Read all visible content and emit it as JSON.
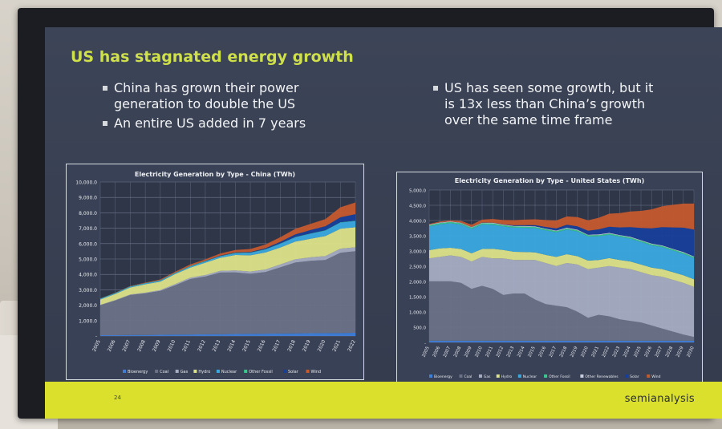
{
  "slide": {
    "title": "US has stagnated energy growth",
    "left_bullets": [
      "China has grown their power generation to double the US",
      "An entire US added in 7 years"
    ],
    "right_bullets": [
      "US has seen some growth, but it is 13x less than China’s growth over the same time frame"
    ],
    "page_number": "24",
    "brand": "semianalysis"
  },
  "colors": {
    "bioenergy": "#3f7fd8",
    "coal": "#6b7287",
    "gas": "#a7aec4",
    "hydro": "#dde38a",
    "nuclear": "#3aa9e0",
    "other_fossil": "#39c98f",
    "other_renewables": "#c8cde0",
    "solar": "#173f9a",
    "wind": "#c55a2f"
  },
  "chart_data": [
    {
      "type": "area",
      "stacked": true,
      "title": "Electricity Generation by Type - China (TWh)",
      "ylim": [
        0,
        10000
      ],
      "yticks": [
        "-",
        "1,000.0",
        "2,000.0",
        "3,000.0",
        "4,000.0",
        "5,000.0",
        "6,000.0",
        "7,000.0",
        "8,000.0",
        "9,000.0",
        "10,000.0"
      ],
      "x": [
        "2005",
        "2006",
        "2007",
        "2008",
        "2009",
        "2010",
        "2011",
        "2012",
        "2013",
        "2014",
        "2015",
        "2016",
        "2017",
        "2018",
        "2019",
        "2020",
        "2021",
        "2022"
      ],
      "legend": [
        "Bioenergy",
        "Coal",
        "Gas",
        "Hydro",
        "Nuclear",
        "Other Fossil",
        "Solar",
        "Wind"
      ],
      "series": [
        {
          "name": "Bioenergy",
          "key": "bioenergy",
          "values": [
            50,
            50,
            60,
            70,
            80,
            90,
            100,
            110,
            120,
            130,
            140,
            150,
            160,
            170,
            180,
            190,
            200,
            210
          ]
        },
        {
          "name": "Coal",
          "key": "coal",
          "values": [
            1950,
            2250,
            2600,
            2700,
            2850,
            3200,
            3600,
            3750,
            4000,
            4000,
            3900,
            4000,
            4300,
            4600,
            4700,
            4750,
            5200,
            5300
          ]
        },
        {
          "name": "Gas",
          "key": "gas",
          "values": [
            20,
            30,
            40,
            40,
            50,
            80,
            90,
            100,
            110,
            130,
            150,
            170,
            190,
            210,
            230,
            250,
            270,
            250
          ]
        },
        {
          "name": "Hydro",
          "key": "hydro",
          "values": [
            350,
            400,
            450,
            550,
            550,
            650,
            650,
            800,
            850,
            1000,
            1050,
            1100,
            1100,
            1150,
            1200,
            1300,
            1300,
            1300
          ]
        },
        {
          "name": "Nuclear",
          "key": "nuclear",
          "values": [
            50,
            50,
            60,
            60,
            70,
            70,
            80,
            90,
            100,
            120,
            160,
            200,
            240,
            280,
            330,
            360,
            400,
            410
          ]
        },
        {
          "name": "Other Fossil",
          "key": "other_fossil",
          "values": [
            20,
            20,
            20,
            20,
            20,
            20,
            20,
            20,
            20,
            20,
            20,
            20,
            20,
            20,
            20,
            20,
            20,
            20
          ]
        },
        {
          "name": "Solar",
          "key": "solar",
          "values": [
            0,
            0,
            0,
            0,
            0,
            0,
            5,
            10,
            20,
            30,
            40,
            60,
            110,
            170,
            220,
            260,
            320,
            420
          ]
        },
        {
          "name": "Wind",
          "key": "wind",
          "values": [
            5,
            10,
            20,
            30,
            50,
            70,
            100,
            100,
            140,
            160,
            190,
            240,
            300,
            360,
            400,
            460,
            650,
            760
          ]
        }
      ]
    },
    {
      "type": "area",
      "stacked": true,
      "title": "Electricity Generation by Type - United States (TWh)",
      "ylim": [
        0,
        5000
      ],
      "yticks": [
        "-",
        "500.0",
        "1,000.0",
        "1,500.0",
        "2,000.0",
        "2,500.0",
        "3,000.0",
        "3,500.0",
        "4,000.0",
        "4,500.0",
        "5,000.0"
      ],
      "x": [
        "2005",
        "2006",
        "2007",
        "2008",
        "2009",
        "2010",
        "2011",
        "2012",
        "2013",
        "2014",
        "2015",
        "2016",
        "2017",
        "2018",
        "2019",
        "2020",
        "2021",
        "2022",
        "2023",
        "2024",
        "2025",
        "2026",
        "2027",
        "2028",
        "2029",
        "2030"
      ],
      "legend": [
        "Bioenergy",
        "Coal",
        "Gas",
        "Hydro",
        "Nuclear",
        "Other Fossil",
        "Other Renewables",
        "Solar",
        "Wind"
      ],
      "series": [
        {
          "name": "Bioenergy",
          "key": "bioenergy",
          "values": [
            55,
            55,
            55,
            55,
            55,
            55,
            55,
            55,
            55,
            55,
            55,
            55,
            55,
            55,
            55,
            55,
            55,
            55,
            55,
            55,
            55,
            55,
            55,
            55,
            55,
            55
          ]
        },
        {
          "name": "Coal",
          "key": "coal",
          "values": [
            1950,
            1950,
            1950,
            1900,
            1700,
            1800,
            1700,
            1500,
            1550,
            1550,
            1350,
            1200,
            1150,
            1100,
            950,
            750,
            850,
            800,
            700,
            650,
            600,
            500,
            400,
            300,
            200,
            120
          ]
        },
        {
          "name": "Gas",
          "key": "gas",
          "values": [
            750,
            800,
            850,
            850,
            900,
            950,
            1000,
            1200,
            1100,
            1100,
            1300,
            1350,
            1300,
            1450,
            1550,
            1600,
            1550,
            1650,
            1700,
            1700,
            1650,
            1650,
            1700,
            1700,
            1700,
            1650
          ]
        },
        {
          "name": "Hydro",
          "key": "hydro",
          "values": [
            270,
            280,
            250,
            260,
            270,
            260,
            320,
            280,
            270,
            260,
            250,
            265,
            300,
            290,
            275,
            280,
            250,
            260,
            250,
            250,
            250,
            250,
            250,
            250,
            250,
            250
          ]
        },
        {
          "name": "Nuclear",
          "key": "nuclear",
          "values": [
            780,
            790,
            805,
            805,
            800,
            805,
            790,
            770,
            790,
            795,
            795,
            805,
            805,
            810,
            810,
            790,
            780,
            770,
            760,
            750,
            740,
            730,
            720,
            710,
            700,
            690
          ]
        },
        {
          "name": "Other Fossil",
          "key": "other_fossil",
          "values": [
            40,
            40,
            40,
            40,
            40,
            40,
            40,
            40,
            40,
            40,
            40,
            40,
            40,
            40,
            40,
            40,
            40,
            40,
            40,
            40,
            40,
            40,
            40,
            40,
            40,
            40
          ]
        },
        {
          "name": "Other Renewables",
          "key": "other_renewables",
          "values": [
            20,
            20,
            20,
            20,
            20,
            20,
            20,
            20,
            20,
            20,
            20,
            20,
            20,
            20,
            20,
            20,
            20,
            20,
            20,
            20,
            20,
            20,
            20,
            20,
            20,
            20
          ]
        },
        {
          "name": "Solar",
          "key": "solar",
          "values": [
            2,
            2,
            2,
            2,
            3,
            4,
            6,
            10,
            20,
            30,
            40,
            55,
            75,
            95,
            110,
            130,
            165,
            200,
            250,
            320,
            400,
            500,
            600,
            700,
            800,
            880
          ]
        },
        {
          "name": "Wind",
          "key": "wind",
          "values": [
            18,
            28,
            35,
            55,
            75,
            95,
            120,
            140,
            165,
            180,
            190,
            225,
            255,
            275,
            300,
            340,
            380,
            430,
            470,
            510,
            560,
            620,
            680,
            740,
            790,
            850
          ]
        }
      ]
    }
  ]
}
